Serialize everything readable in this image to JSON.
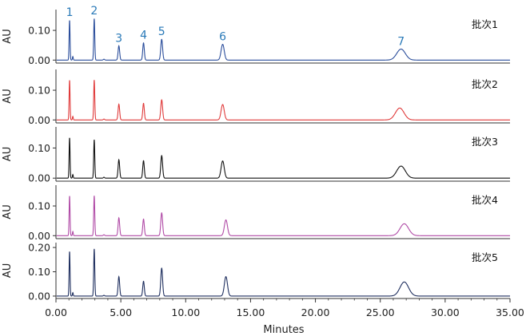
{
  "chart_data": {
    "type": "line",
    "xlabel": "Minutes",
    "xlim": [
      0,
      35
    ],
    "x_ticks": [
      "0.00",
      "5.00",
      "10.00",
      "15.00",
      "20.00",
      "25.00",
      "30.00",
      "35.00"
    ],
    "ylabel": "AU",
    "peak_labels": [
      "1",
      "2",
      "3",
      "4",
      "5",
      "6",
      "7"
    ],
    "peak_retention_times": [
      1.05,
      2.95,
      4.85,
      6.75,
      8.15,
      12.85,
      26.6
    ],
    "peak_label_color": "#2a7ab8",
    "panels": [
      {
        "name": "批次1",
        "color": "#2a4d9b",
        "ylim": [
          -0.01,
          0.17
        ],
        "y_ticks": [
          "0.00",
          "0.10"
        ],
        "y_tick_values": [
          0.0,
          0.1
        ],
        "peaks": [
          {
            "t": 1.05,
            "h": 0.135,
            "w": 0.035
          },
          {
            "t": 1.3,
            "h": 0.012,
            "w": 0.03
          },
          {
            "t": 2.95,
            "h": 0.14,
            "w": 0.04
          },
          {
            "t": 3.7,
            "h": 0.003,
            "w": 0.05
          },
          {
            "t": 4.85,
            "h": 0.048,
            "w": 0.06
          },
          {
            "t": 6.75,
            "h": 0.058,
            "w": 0.06
          },
          {
            "t": 8.15,
            "h": 0.07,
            "w": 0.07
          },
          {
            "t": 12.85,
            "h": 0.053,
            "w": 0.12
          },
          {
            "t": 26.6,
            "h": 0.037,
            "w": 0.33
          }
        ]
      },
      {
        "name": "批次2",
        "color": "#e03a3a",
        "ylim": [
          -0.01,
          0.17
        ],
        "y_ticks": [
          "0.00",
          "0.10"
        ],
        "y_tick_values": [
          0.0,
          0.1
        ],
        "peaks": [
          {
            "t": 1.05,
            "h": 0.135,
            "w": 0.035
          },
          {
            "t": 1.3,
            "h": 0.012,
            "w": 0.03
          },
          {
            "t": 2.95,
            "h": 0.135,
            "w": 0.04
          },
          {
            "t": 3.7,
            "h": 0.003,
            "w": 0.05
          },
          {
            "t": 4.85,
            "h": 0.053,
            "w": 0.06
          },
          {
            "t": 6.75,
            "h": 0.056,
            "w": 0.06
          },
          {
            "t": 8.15,
            "h": 0.068,
            "w": 0.07
          },
          {
            "t": 12.85,
            "h": 0.052,
            "w": 0.12
          },
          {
            "t": 26.5,
            "h": 0.04,
            "w": 0.33
          }
        ]
      },
      {
        "name": "批次3",
        "color": "#111111",
        "ylim": [
          -0.01,
          0.17
        ],
        "y_ticks": [
          "0.00",
          "0.10"
        ],
        "y_tick_values": [
          0.0,
          0.1
        ],
        "peaks": [
          {
            "t": 1.05,
            "h": 0.135,
            "w": 0.035
          },
          {
            "t": 1.3,
            "h": 0.012,
            "w": 0.03
          },
          {
            "t": 2.95,
            "h": 0.128,
            "w": 0.04
          },
          {
            "t": 3.7,
            "h": 0.003,
            "w": 0.05
          },
          {
            "t": 4.85,
            "h": 0.061,
            "w": 0.06
          },
          {
            "t": 6.75,
            "h": 0.058,
            "w": 0.06
          },
          {
            "t": 8.15,
            "h": 0.075,
            "w": 0.07
          },
          {
            "t": 12.85,
            "h": 0.057,
            "w": 0.12
          },
          {
            "t": 26.6,
            "h": 0.04,
            "w": 0.33
          }
        ]
      },
      {
        "name": "批次4",
        "color": "#b04aa6",
        "ylim": [
          -0.01,
          0.17
        ],
        "y_ticks": [
          "0.00",
          "0.10"
        ],
        "y_tick_values": [
          0.0,
          0.1
        ],
        "peaks": [
          {
            "t": 1.05,
            "h": 0.135,
            "w": 0.035
          },
          {
            "t": 1.3,
            "h": 0.014,
            "w": 0.03
          },
          {
            "t": 2.95,
            "h": 0.135,
            "w": 0.04
          },
          {
            "t": 3.7,
            "h": 0.003,
            "w": 0.05
          },
          {
            "t": 4.85,
            "h": 0.06,
            "w": 0.06
          },
          {
            "t": 6.75,
            "h": 0.056,
            "w": 0.06
          },
          {
            "t": 8.15,
            "h": 0.077,
            "w": 0.07
          },
          {
            "t": 13.1,
            "h": 0.053,
            "w": 0.12
          },
          {
            "t": 26.85,
            "h": 0.04,
            "w": 0.33
          }
        ]
      },
      {
        "name": "批次5",
        "color": "#1f2f5f",
        "ylim": [
          -0.01,
          0.22
        ],
        "y_ticks": [
          "0.00",
          "0.10",
          "0.20"
        ],
        "y_tick_values": [
          0.0,
          0.1,
          0.2
        ],
        "peaks": [
          {
            "t": 1.05,
            "h": 0.185,
            "w": 0.035
          },
          {
            "t": 1.3,
            "h": 0.014,
            "w": 0.03
          },
          {
            "t": 2.95,
            "h": 0.195,
            "w": 0.04
          },
          {
            "t": 3.7,
            "h": 0.003,
            "w": 0.05
          },
          {
            "t": 4.85,
            "h": 0.08,
            "w": 0.06
          },
          {
            "t": 6.75,
            "h": 0.061,
            "w": 0.06
          },
          {
            "t": 8.15,
            "h": 0.115,
            "w": 0.07
          },
          {
            "t": 13.1,
            "h": 0.08,
            "w": 0.12
          },
          {
            "t": 26.85,
            "h": 0.058,
            "w": 0.33
          }
        ]
      }
    ]
  }
}
